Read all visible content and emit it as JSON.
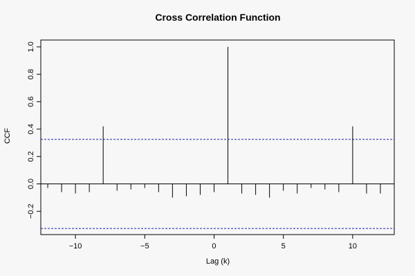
{
  "chart_data": {
    "type": "bar",
    "title": "Cross Correlation Function",
    "xlabel": "Lag (k)",
    "ylabel": "CCF",
    "xlim": [
      -12.5,
      13
    ],
    "ylim": [
      -0.37,
      1.05
    ],
    "xticks": [
      -10,
      -5,
      0,
      5,
      10
    ],
    "yticks": [
      -0.2,
      0.0,
      0.2,
      0.4,
      0.6,
      0.8,
      1.0
    ],
    "xtick_labels": [
      "−10",
      "−5",
      "0",
      "5",
      "10"
    ],
    "ytick_labels": [
      "−0.2",
      "0.0",
      "0.2",
      "0.4",
      "0.6",
      "0.8",
      "1.0"
    ],
    "confidence_band": [
      0.325,
      -0.325
    ],
    "ci_color": "#1a1ab0",
    "lags": [
      -12,
      -11,
      -10,
      -9,
      -8,
      -7,
      -6,
      -5,
      -4,
      -3,
      -2,
      -1,
      0,
      1,
      2,
      3,
      4,
      5,
      6,
      7,
      8,
      9,
      10,
      11,
      12
    ],
    "values": [
      -0.03,
      -0.06,
      -0.07,
      -0.06,
      0.42,
      -0.05,
      -0.04,
      -0.03,
      -0.06,
      -0.1,
      -0.09,
      -0.08,
      -0.06,
      1.0,
      -0.07,
      -0.08,
      -0.1,
      -0.05,
      -0.07,
      -0.03,
      -0.04,
      -0.06,
      0.42,
      -0.07,
      -0.07
    ],
    "grid": false
  }
}
